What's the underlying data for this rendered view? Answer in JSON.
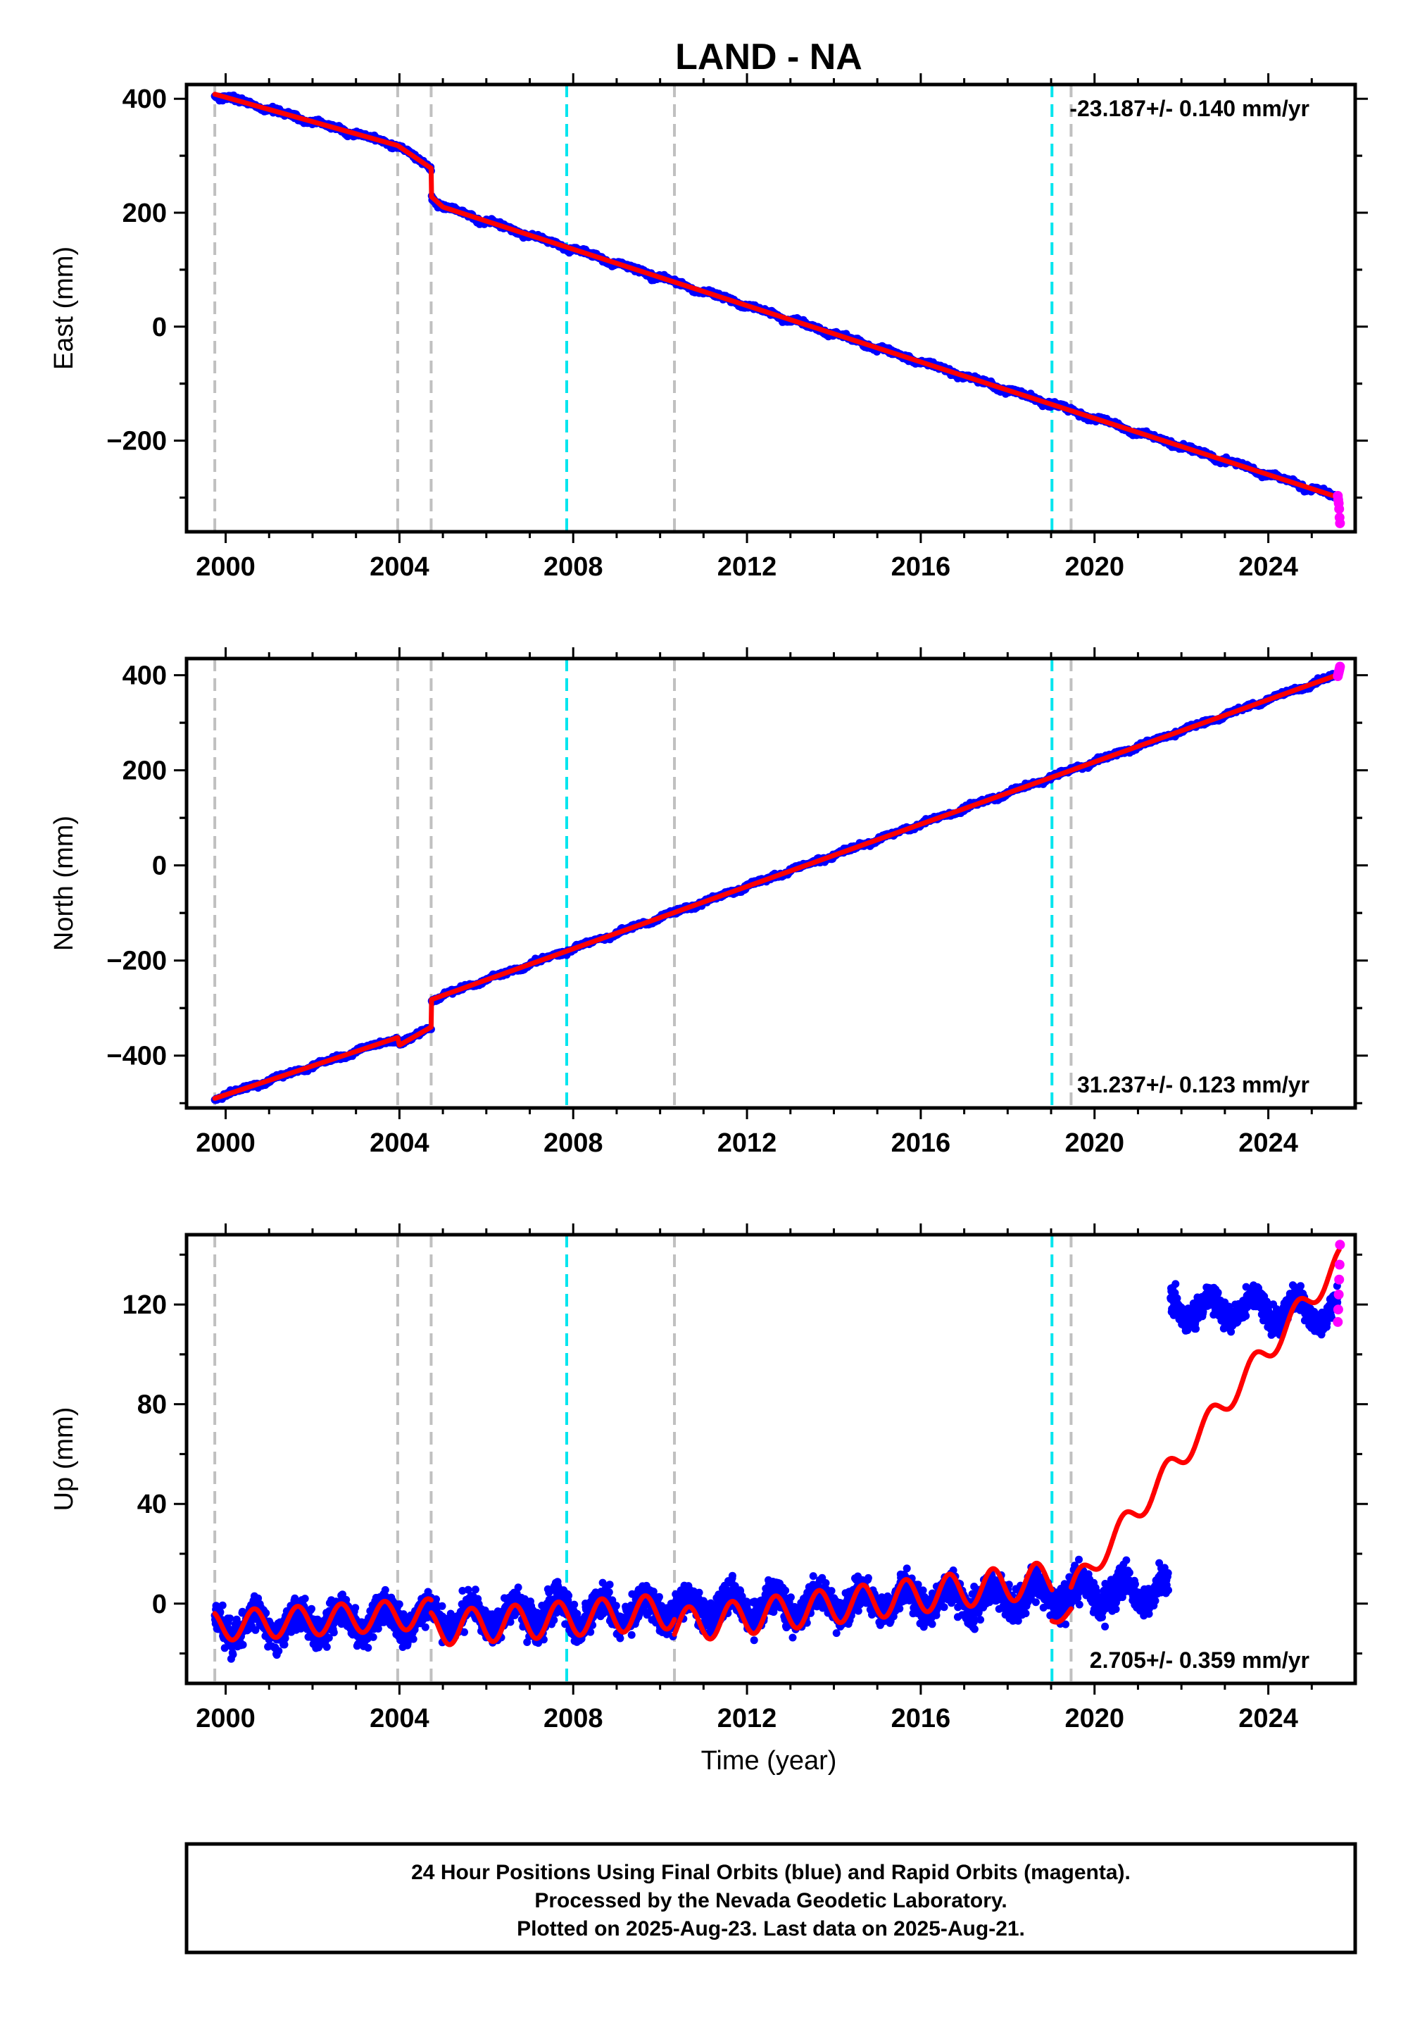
{
  "title": "LAND - NA",
  "xlabel": "Time (year)",
  "footer": {
    "line1": "24 Hour Positions Using Final Orbits (blue) and Rapid Orbits (magenta).",
    "line2": "Processed by the Nevada Geodetic Laboratory.",
    "line3": "Plotted on 2025-Aug-23. Last data on 2025-Aug-21."
  },
  "colors": {
    "final_orbits": "#0000ff",
    "rapid_orbits": "#ff00ff",
    "model_fit": "#ff0000",
    "event_gray": "#c0c0c0",
    "event_cyan": "#00e5ee"
  },
  "chart_data": [
    {
      "type": "scatter",
      "panel": "east",
      "ylabel": "East (mm)",
      "rate_label": "-23.187+/- 0.140 mm/yr",
      "rate_position": "top-right",
      "xlim": [
        1999.1,
        2026.0
      ],
      "ylim": [
        -360,
        425
      ],
      "x_ticks": [
        2000,
        2004,
        2008,
        2012,
        2016,
        2020,
        2024
      ],
      "y_ticks": [
        -200,
        0,
        200,
        400
      ],
      "y_tick_labels": [
        "−200",
        "0",
        "200",
        "400"
      ],
      "events_gray": [
        1999.75,
        2003.96,
        2004.73,
        2010.33,
        2019.46
      ],
      "events_cyan": [
        2007.85,
        2019.02
      ],
      "model_points": [
        [
          1999.75,
          408
        ],
        [
          2003.96,
          318
        ],
        [
          2004.73,
          278
        ],
        [
          2004.74,
          228
        ],
        [
          2005.0,
          210
        ],
        [
          2025.63,
          -300
        ]
      ],
      "rapid_points": [
        [
          2025.6,
          -297
        ],
        [
          2025.61,
          -304
        ],
        [
          2025.62,
          -310
        ],
        [
          2025.63,
          -320
        ],
        [
          2025.64,
          -335
        ],
        [
          2025.65,
          -345
        ]
      ],
      "grid": false,
      "legend": "none"
    },
    {
      "type": "scatter",
      "panel": "north",
      "ylabel": "North (mm)",
      "rate_label": "31.237+/- 0.123 mm/yr",
      "rate_position": "bottom-right",
      "xlim": [
        1999.1,
        2026.0
      ],
      "ylim": [
        -510,
        435
      ],
      "x_ticks": [
        2000,
        2004,
        2008,
        2012,
        2016,
        2020,
        2024
      ],
      "y_ticks": [
        -400,
        -200,
        0,
        200,
        400
      ],
      "y_tick_labels": [
        "−400",
        "−200",
        "0",
        "200",
        "400"
      ],
      "events_gray": [
        1999.75,
        2003.96,
        2004.73,
        2010.33,
        2019.46
      ],
      "events_cyan": [
        2007.85,
        2019.02
      ],
      "model_points": [
        [
          1999.75,
          -490
        ],
        [
          2003.96,
          -362
        ],
        [
          2004.0,
          -378
        ],
        [
          2004.73,
          -340
        ],
        [
          2004.74,
          -282
        ],
        [
          2025.63,
          402
        ]
      ],
      "rapid_points": [
        [
          2025.6,
          398
        ],
        [
          2025.61,
          402
        ],
        [
          2025.62,
          406
        ],
        [
          2025.63,
          410
        ],
        [
          2025.64,
          414
        ],
        [
          2025.65,
          418
        ]
      ],
      "grid": false,
      "legend": "none"
    },
    {
      "type": "scatter",
      "panel": "up",
      "ylabel": "Up (mm)",
      "rate_label": "2.705+/- 0.359 mm/yr",
      "rate_position": "bottom-right",
      "xlim": [
        1999.1,
        2026.0
      ],
      "ylim": [
        -32,
        148
      ],
      "x_ticks": [
        2000,
        2004,
        2008,
        2012,
        2016,
        2020,
        2024
      ],
      "y_ticks": [
        0,
        40,
        80,
        120
      ],
      "y_tick_labels": [
        "0",
        "40",
        "80",
        "120"
      ],
      "events_gray": [
        1999.75,
        2003.96,
        2004.73,
        2010.33,
        2019.46
      ],
      "events_cyan": [
        2007.85,
        2019.02
      ],
      "data_segments": [
        {
          "x_range": [
            1999.75,
            2021.7
          ],
          "y_start": -9,
          "y_end": 5,
          "scatter_mm": 6
        },
        {
          "x_range": [
            2021.75,
            2025.6
          ],
          "y_start": 119,
          "y_end": 117,
          "scatter_mm": 5
        }
      ],
      "model_segments": [
        {
          "x_range": [
            1999.75,
            2004.73
          ],
          "y_start": -9,
          "y_end": -4,
          "seasonal_amp": 6
        },
        {
          "x_range": [
            2004.73,
            2010.33
          ],
          "y_start": -10,
          "y_end": -3,
          "seasonal_amp": 7
        },
        {
          "x_range": [
            2010.33,
            2019.02
          ],
          "y_start": -9,
          "y_end": 10,
          "seasonal_amp": 7
        },
        {
          "x_range": [
            2019.02,
            2019.46
          ],
          "y_start": -5,
          "y_end": -3,
          "seasonal_amp": 3
        },
        {
          "x_range": [
            2019.46,
            2025.63
          ],
          "y_start": 5,
          "y_end": 137,
          "seasonal_amp": 5
        }
      ],
      "rapid_points": [
        [
          2025.6,
          113
        ],
        [
          2025.61,
          118
        ],
        [
          2025.62,
          124
        ],
        [
          2025.63,
          130
        ],
        [
          2025.64,
          136
        ],
        [
          2025.65,
          144
        ]
      ],
      "grid": false,
      "legend": "none"
    }
  ]
}
